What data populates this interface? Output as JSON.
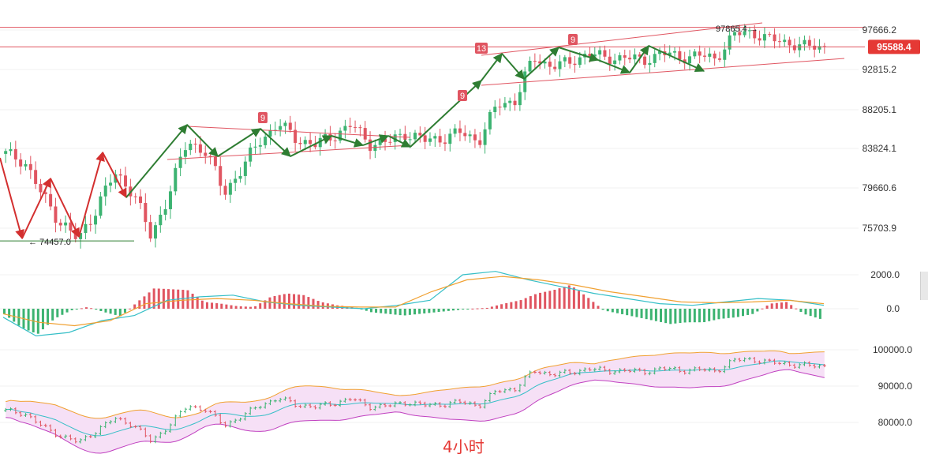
{
  "chart_data": [
    {
      "type": "candlestick",
      "panel": "price",
      "y_axis_ticks": [
        "97666.2",
        "92815.2",
        "88205.1",
        "83824.1",
        "79660.6",
        "75703.9"
      ],
      "ylim": [
        72500,
        99500
      ],
      "current_price_label": "95588.4",
      "current_price": 95588.4,
      "high_marker_label": "97865.4 →",
      "high_marker_value": 97865.4,
      "low_marker_label": "← 74457.0",
      "low_marker_value": 74457.0,
      "sequence_badges": [
        "9",
        "13",
        "9",
        "9"
      ],
      "close_path": [
        83200,
        82600,
        78900,
        76400,
        74457,
        77800,
        81100,
        79400,
        74700,
        79300,
        84600,
        83500,
        79200,
        81700,
        84800,
        86600,
        84900,
        84200,
        85300,
        86500,
        84400,
        84500,
        85600,
        84700,
        85000,
        85600,
        84700,
        88700,
        89300,
        94200,
        93300,
        93600,
        94900,
        94100,
        94400,
        93800,
        94900,
        94300,
        94600,
        94100,
        97100,
        97400,
        96500,
        96100,
        95600,
        95588.4
      ],
      "annotation_lines": {
        "horizontal_levels": [
          97800,
          95588.4,
          74457.0
        ],
        "triangle_upper": [
          [
            85980,
            84700
          ]
        ],
        "channel": [
          [
            97800,
            91800
          ]
        ]
      }
    },
    {
      "type": "macd",
      "panel": "indicator",
      "y_axis_ticks": [
        "2000.0",
        "0.0"
      ],
      "ylim": [
        -1800,
        2400
      ],
      "histogram": [
        -300,
        -1100,
        -1500,
        -600,
        -100,
        100,
        -200,
        -450,
        400,
        1200,
        1150,
        1100,
        400,
        300,
        150,
        100,
        700,
        900,
        800,
        400,
        200,
        100,
        -200,
        -300,
        -400,
        -300,
        -200,
        -100,
        0,
        50,
        300,
        500,
        900,
        1100,
        1400,
        700,
        -100,
        -300,
        -500,
        -700,
        -900,
        -800,
        -800,
        -600,
        -500,
        -300,
        300,
        400,
        -300,
        -600
      ],
      "dif": [
        -500,
        -1600,
        -1400,
        -700,
        -400,
        500,
        700,
        800,
        400,
        200,
        100,
        0,
        200,
        500,
        2000,
        2200,
        1700,
        1300,
        900,
        600,
        300,
        200,
        400,
        600,
        500,
        200
      ],
      "dea": [
        -300,
        -800,
        -1000,
        -700,
        300,
        500,
        600,
        500,
        300,
        150,
        100,
        100,
        1000,
        1700,
        1900,
        1700,
        1400,
        1000,
        700,
        400,
        350,
        400,
        500,
        300
      ]
    },
    {
      "type": "bollinger",
      "panel": "bands",
      "y_axis_ticks": [
        "100000.0",
        "90000.0",
        "80000.0"
      ],
      "ylim": [
        74000,
        102000
      ]
    }
  ],
  "timeframe_label": "4小时"
}
